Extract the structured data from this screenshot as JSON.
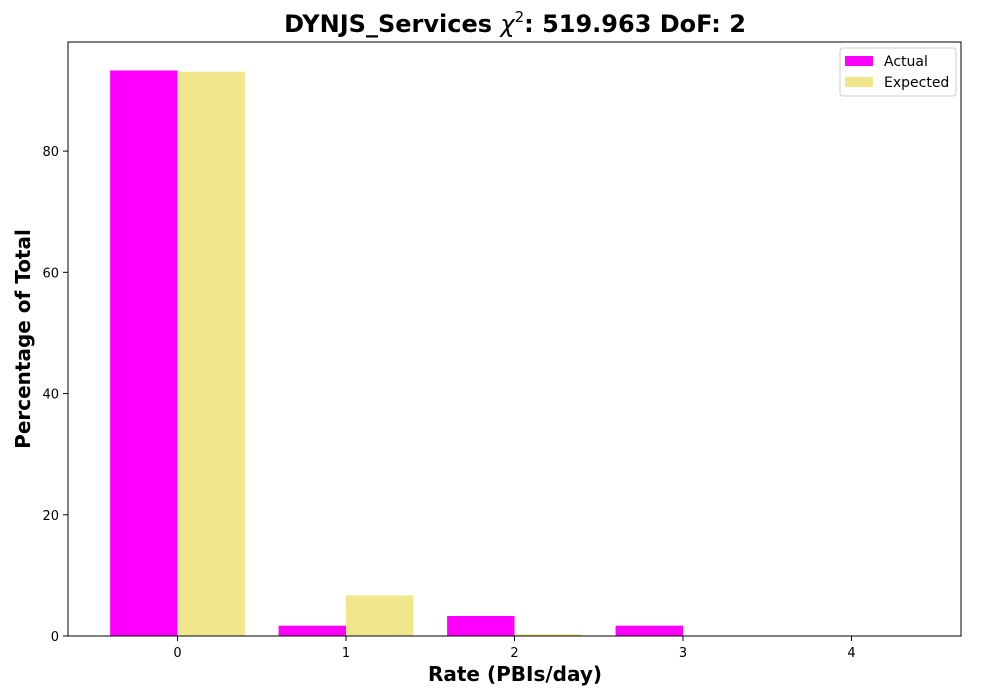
{
  "chart_data": {
    "type": "bar",
    "title_main": "DYNJS_Services ",
    "title_chi_symbol": "χ",
    "title_chi_exp": "2",
    "title_rest": ": 519.963 DoF: 2",
    "xlabel": "Rate (PBIs/day)",
    "ylabel": "Percentage of Total",
    "categories": [
      "0",
      "1",
      "2",
      "3",
      "4"
    ],
    "x": [
      0,
      1,
      2,
      3,
      4
    ],
    "ylim": [
      0,
      98
    ],
    "xlim": [
      -0.65,
      4.65
    ],
    "yticks": [
      0,
      20,
      40,
      60,
      80
    ],
    "grid": false,
    "legend_position": "top-right",
    "series": [
      {
        "name": "Actual",
        "color": "#ff00ff",
        "values": [
          93.3,
          1.7,
          3.3,
          1.7,
          0.0
        ]
      },
      {
        "name": "Expected",
        "color": "#f0e68c",
        "values": [
          93.1,
          6.7,
          0.3,
          0.0,
          0.0
        ]
      }
    ]
  }
}
